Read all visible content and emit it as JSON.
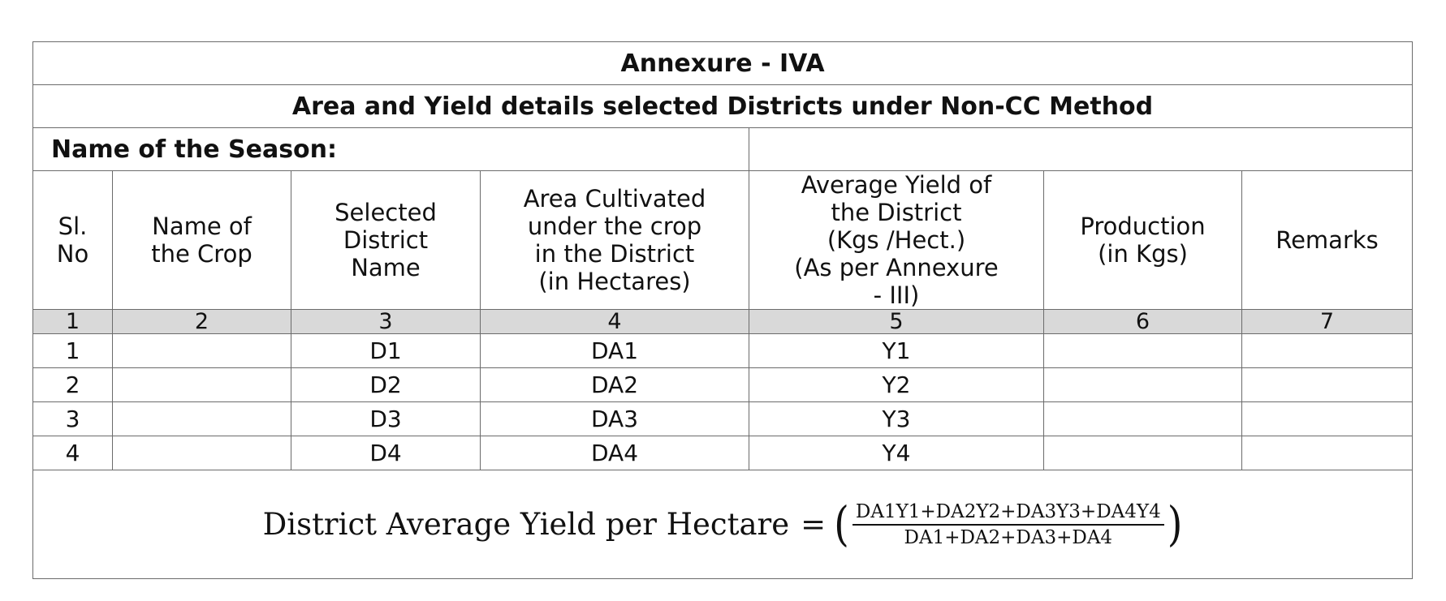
{
  "annexure_title": "Annexure - IVA",
  "subtitle": "Area and Yield details selected Districts under Non-CC Method",
  "season": {
    "label": "Name of the Season:",
    "value": ""
  },
  "columns": [
    {
      "header": "Sl.\nNo",
      "number": "1"
    },
    {
      "header": "Name of\nthe Crop",
      "number": "2"
    },
    {
      "header": "Selected\nDistrict\nName",
      "number": "3"
    },
    {
      "header": "Area Cultivated\nunder the crop\nin the District\n(in Hectares)",
      "number": "4"
    },
    {
      "header": "Average Yield of\nthe District\n(Kgs /Hect.)\n(As per Annexure\n- III)",
      "number": "5"
    },
    {
      "header": "Production\n(in Kgs)",
      "number": "6"
    },
    {
      "header": "Remarks",
      "number": "7"
    }
  ],
  "rows": [
    {
      "sl": "1",
      "crop": "",
      "district": "D1",
      "area": "DA1",
      "yield": "Y1",
      "production": "",
      "remarks": ""
    },
    {
      "sl": "2",
      "crop": "",
      "district": "D2",
      "area": "DA2",
      "yield": "Y2",
      "production": "",
      "remarks": ""
    },
    {
      "sl": "3",
      "crop": "",
      "district": "D3",
      "area": "DA3",
      "yield": "Y3",
      "production": "",
      "remarks": ""
    },
    {
      "sl": "4",
      "crop": "",
      "district": "D4",
      "area": "DA4",
      "yield": "Y4",
      "production": "",
      "remarks": ""
    }
  ],
  "formula": {
    "lhs": "District Average Yield per Hectare",
    "equals": "=",
    "open_paren": "(",
    "numerator": "DA1Y1+DA2Y2+DA3Y3+DA4Y4",
    "denominator": "DA1+DA2+DA3+DA4",
    "close_paren": ")"
  }
}
